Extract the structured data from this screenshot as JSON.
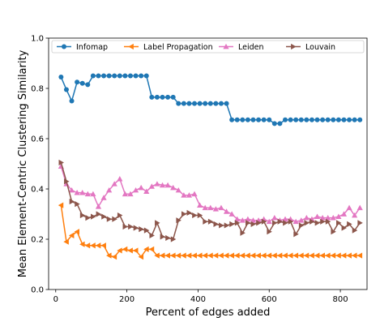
{
  "chart_data": {
    "type": "line",
    "title": "",
    "xlabel": "Percent of edges added",
    "ylabel": "Mean Element-Centric Clustering Similarity",
    "xlim": [
      -20,
      875
    ],
    "ylim": [
      0.0,
      1.0
    ],
    "xticks": [
      0,
      200,
      400,
      600,
      800
    ],
    "yticks": [
      0.0,
      0.2,
      0.4,
      0.6,
      0.8,
      1.0
    ],
    "xtick_labels": [
      "0",
      "200",
      "400",
      "600",
      "800"
    ],
    "ytick_labels": [
      "0.0",
      "0.2",
      "0.4",
      "0.6",
      "0.8",
      "1.0"
    ],
    "grid": false,
    "legend_position": "top",
    "x": [
      15,
      30,
      45,
      60,
      75,
      90,
      105,
      120,
      135,
      150,
      165,
      180,
      195,
      210,
      225,
      240,
      255,
      270,
      285,
      300,
      315,
      330,
      345,
      360,
      375,
      390,
      405,
      420,
      435,
      450,
      465,
      480,
      495,
      510,
      525,
      540,
      555,
      570,
      585,
      600,
      615,
      630,
      645,
      660,
      675,
      690,
      705,
      720,
      735,
      750,
      765,
      780,
      795,
      810,
      825,
      840,
      855
    ],
    "series": [
      {
        "name": "Infomap",
        "color": "#1f77b4",
        "marker": "circle",
        "values": [
          0.845,
          0.795,
          0.75,
          0.825,
          0.82,
          0.815,
          0.85,
          0.85,
          0.85,
          0.85,
          0.85,
          0.85,
          0.85,
          0.85,
          0.85,
          0.85,
          0.85,
          0.765,
          0.765,
          0.765,
          0.765,
          0.765,
          0.74,
          0.74,
          0.74,
          0.74,
          0.74,
          0.74,
          0.74,
          0.74,
          0.74,
          0.74,
          0.675,
          0.675,
          0.675,
          0.675,
          0.675,
          0.675,
          0.675,
          0.675,
          0.66,
          0.66,
          0.675,
          0.675,
          0.675,
          0.675,
          0.675,
          0.675,
          0.675,
          0.675,
          0.675,
          0.675,
          0.675,
          0.675,
          0.675,
          0.675,
          0.675
        ]
      },
      {
        "name": "Label Propagation",
        "color": "#ff7f0e",
        "marker": "triangle-left",
        "values": [
          0.335,
          0.19,
          0.215,
          0.23,
          0.18,
          0.175,
          0.175,
          0.175,
          0.175,
          0.135,
          0.13,
          0.155,
          0.16,
          0.155,
          0.155,
          0.13,
          0.16,
          0.16,
          0.135,
          0.135,
          0.135,
          0.135,
          0.135,
          0.135,
          0.135,
          0.135,
          0.135,
          0.135,
          0.135,
          0.135,
          0.135,
          0.135,
          0.135,
          0.135,
          0.135,
          0.135,
          0.135,
          0.135,
          0.135,
          0.135,
          0.135,
          0.135,
          0.135,
          0.135,
          0.135,
          0.135,
          0.135,
          0.135,
          0.135,
          0.135,
          0.135,
          0.135,
          0.135,
          0.135,
          0.135,
          0.135,
          0.135
        ]
      },
      {
        "name": "Leiden",
        "color": "#e377c2",
        "marker": "triangle-up",
        "values": [
          0.49,
          0.42,
          0.395,
          0.385,
          0.385,
          0.38,
          0.38,
          0.33,
          0.365,
          0.395,
          0.42,
          0.44,
          0.38,
          0.38,
          0.395,
          0.405,
          0.39,
          0.41,
          0.42,
          0.415,
          0.415,
          0.405,
          0.395,
          0.375,
          0.375,
          0.38,
          0.335,
          0.325,
          0.325,
          0.32,
          0.325,
          0.31,
          0.3,
          0.28,
          0.275,
          0.28,
          0.275,
          0.275,
          0.28,
          0.27,
          0.285,
          0.275,
          0.28,
          0.28,
          0.27,
          0.275,
          0.285,
          0.28,
          0.29,
          0.285,
          0.285,
          0.285,
          0.29,
          0.3,
          0.325,
          0.295,
          0.325
        ]
      },
      {
        "name": "Louvain",
        "color": "#8c564b",
        "marker": "triangle-right",
        "values": [
          0.505,
          0.43,
          0.35,
          0.34,
          0.295,
          0.285,
          0.29,
          0.3,
          0.29,
          0.28,
          0.28,
          0.295,
          0.25,
          0.25,
          0.245,
          0.24,
          0.235,
          0.215,
          0.265,
          0.21,
          0.205,
          0.2,
          0.275,
          0.3,
          0.305,
          0.295,
          0.295,
          0.27,
          0.27,
          0.26,
          0.255,
          0.255,
          0.26,
          0.265,
          0.225,
          0.265,
          0.26,
          0.265,
          0.27,
          0.23,
          0.265,
          0.27,
          0.265,
          0.27,
          0.22,
          0.255,
          0.265,
          0.27,
          0.265,
          0.27,
          0.27,
          0.23,
          0.265,
          0.245,
          0.26,
          0.235,
          0.265
        ]
      }
    ]
  }
}
